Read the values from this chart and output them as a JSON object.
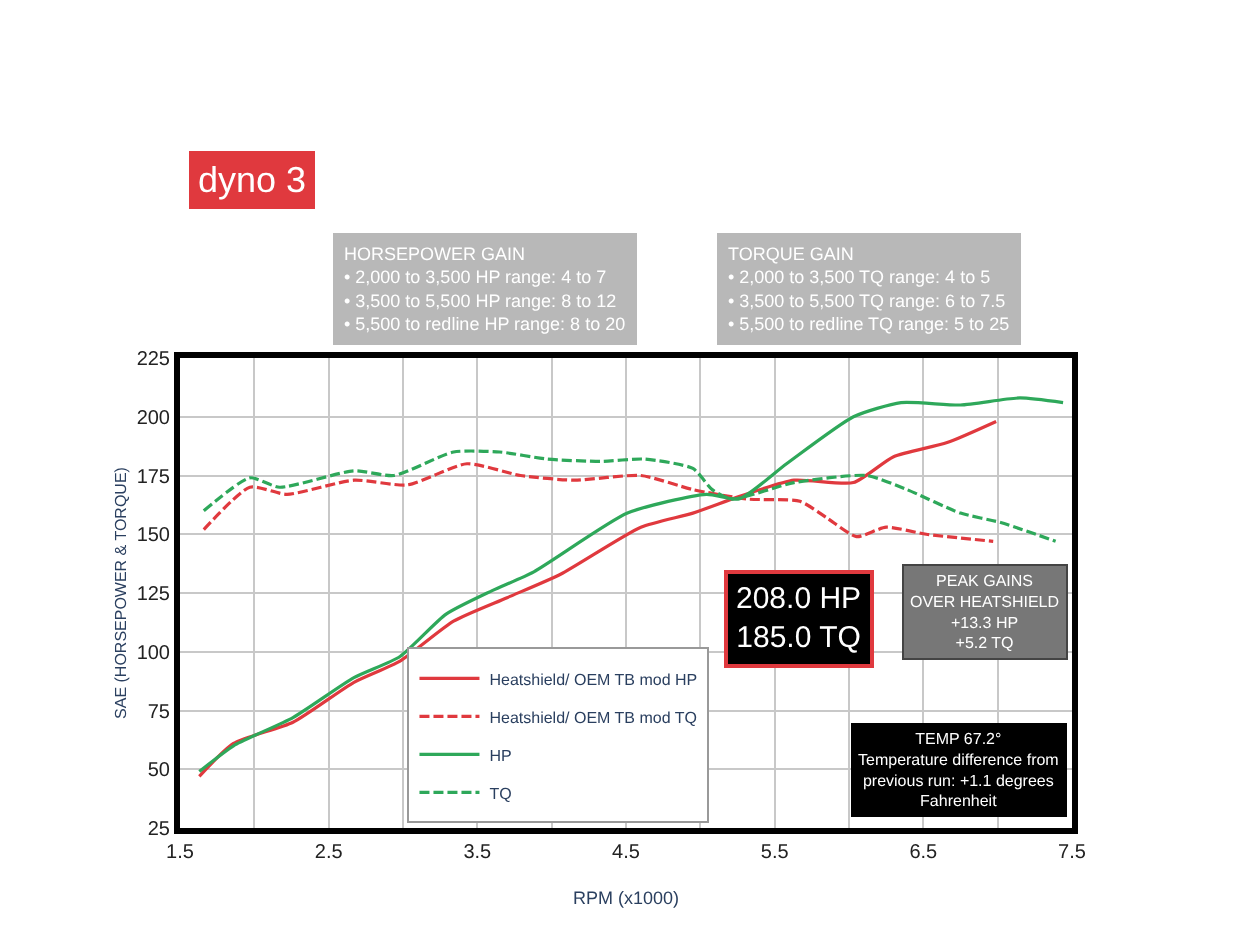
{
  "chart_data": {
    "type": "line",
    "title": "dyno 3",
    "xlabel": "RPM (x1000)",
    "ylabel": "SAE (HORSEPOWER & TORQUE)",
    "xlim": [
      1.5,
      7.5
    ],
    "ylim": [
      25,
      225
    ],
    "xticks": [
      1.5,
      {
        "value": 2,
        "label": null
      },
      2.5,
      {
        "value": 3,
        "label": null
      },
      3.5,
      {
        "value": 4,
        "label": null
      },
      4.5,
      {
        "value": 5,
        "label": null
      },
      5.5,
      {
        "value": 6,
        "label": null
      },
      6.5,
      {
        "value": 7,
        "label": null
      },
      7.5
    ],
    "yticks": [
      25,
      50,
      75,
      100,
      125,
      150,
      175,
      200,
      225
    ],
    "grid": true,
    "legend": "bottom",
    "marker": "none",
    "series": [
      {
        "name": "Heatshield/ OEM TB mod HP",
        "color": "#e0393e",
        "line_style": "solid",
        "x": [
          1.63,
          1.86,
          2.26,
          2.67,
          2.98,
          3.34,
          3.7,
          4.06,
          4.6,
          4.95,
          5.26,
          5.63,
          6.03,
          6.3,
          6.66,
          6.99
        ],
        "values": [
          47,
          61,
          70,
          87,
          96,
          113,
          123,
          133,
          153,
          159,
          166,
          173,
          172,
          183,
          189,
          198
        ]
      },
      {
        "name": "Heatshield/ OEM TB mod TQ",
        "color": "#e0393e",
        "line_style": "dashed",
        "x": [
          1.66,
          1.97,
          2.22,
          2.67,
          3.03,
          3.43,
          3.79,
          4.15,
          4.6,
          4.95,
          5.31,
          5.67,
          5.85,
          6.05,
          6.25,
          6.52,
          6.97
        ],
        "values": [
          152,
          170,
          167,
          173,
          171,
          180,
          175,
          173,
          175,
          169,
          165,
          164,
          157,
          149,
          153,
          150,
          147
        ]
      },
      {
        "name": "HP",
        "color": "#2ea85a",
        "line_style": "solid",
        "x": [
          1.63,
          1.86,
          2.26,
          2.67,
          2.98,
          3.29,
          3.6,
          3.88,
          4.51,
          5.04,
          5.26,
          5.58,
          6.03,
          6.35,
          6.75,
          7.15,
          7.44
        ],
        "values": [
          49,
          60,
          72,
          89,
          98,
          116,
          126,
          134,
          159,
          167,
          165,
          180,
          200,
          206,
          205,
          208,
          206
        ]
      },
      {
        "name": "TQ",
        "color": "#2ea85a",
        "line_style": "dashed",
        "x": [
          1.66,
          1.97,
          2.17,
          2.67,
          2.94,
          3.34,
          3.65,
          3.97,
          4.33,
          4.62,
          4.95,
          5.08,
          5.21,
          5.63,
          6.12,
          6.39,
          6.75,
          7.02,
          7.39
        ],
        "values": [
          160,
          174,
          170,
          177,
          175,
          185,
          185,
          182,
          181,
          182,
          178,
          169,
          165,
          172,
          175,
          169,
          159,
          155,
          147
        ]
      }
    ],
    "annotations": [
      "HORSEPOWER GAIN\n• 2,000 to 3,500 HP range: 4 to 7\n• 3,500 to 5,500 HP range: 8 to 12\n• 5,500 to redline HP range: 8 to 20",
      "TORQUE GAIN\n• 2,000 to 3,500 TQ range: 4 to 5\n• 3,500 to 5,500 TQ range: 6 to 7.5\n• 5,500 to redline TQ range: 5 to 25",
      "208.0 HP\n185.0 TQ",
      "PEAK GAINS\nOVER HEATSHIELD\n+13.3 HP\n+5.2 TQ",
      "TEMP 67.2°\nTemperature difference from\nprevious run: +1.1 degrees\nFahrenheit"
    ]
  }
}
